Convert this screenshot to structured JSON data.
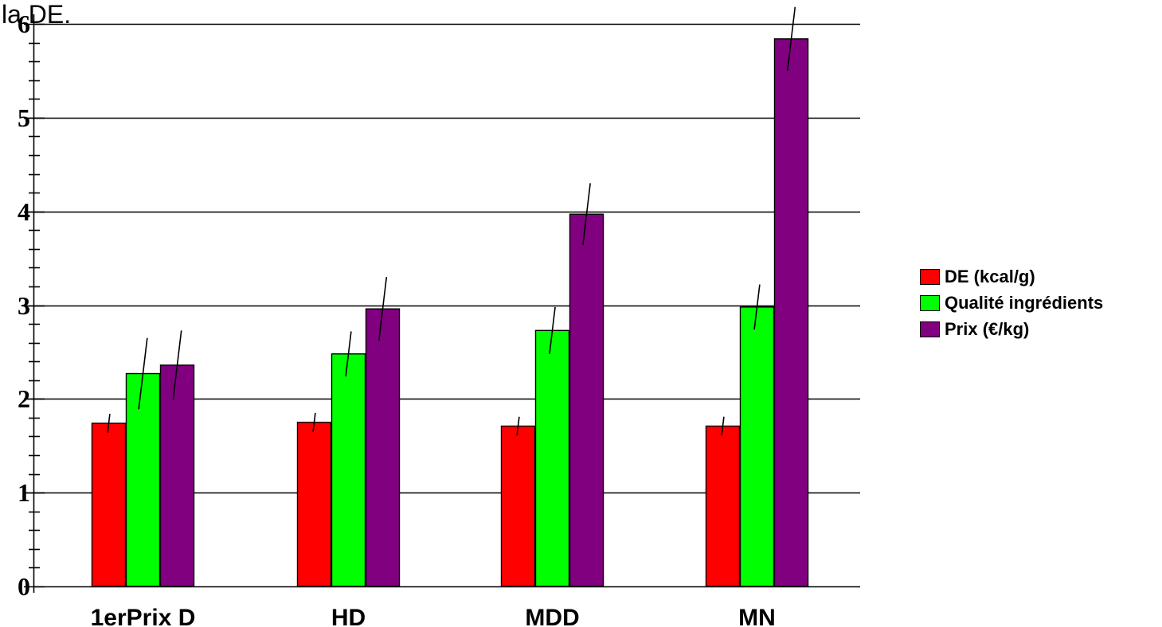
{
  "caption": "la DE.",
  "chart_data": {
    "type": "bar",
    "title": "",
    "xlabel": "",
    "ylabel": "",
    "categories": [
      "1erPrix D",
      "HD",
      "MDD",
      "MN"
    ],
    "ylim": [
      0,
      6
    ],
    "yticks": [
      "0",
      "1",
      "2",
      "3",
      "4",
      "5",
      "6"
    ],
    "grid": true,
    "legend_position": "right",
    "series": [
      {
        "name": "DE (kcal/g)",
        "color": "#ff0000",
        "values": [
          1.74,
          1.75,
          1.71,
          1.71
        ],
        "error": [
          0.1,
          0.1,
          0.1,
          0.1
        ]
      },
      {
        "name": "Qualité ingrédients",
        "color": "#00ff00",
        "values": [
          2.27,
          2.48,
          2.73,
          2.98
        ],
        "error": [
          0.38,
          0.24,
          0.25,
          0.24
        ]
      },
      {
        "name": "Prix (€/kg)",
        "color": "#800080",
        "values": [
          2.36,
          2.96,
          3.97,
          5.84
        ],
        "error": [
          0.37,
          0.34,
          0.33,
          0.34
        ]
      }
    ]
  }
}
